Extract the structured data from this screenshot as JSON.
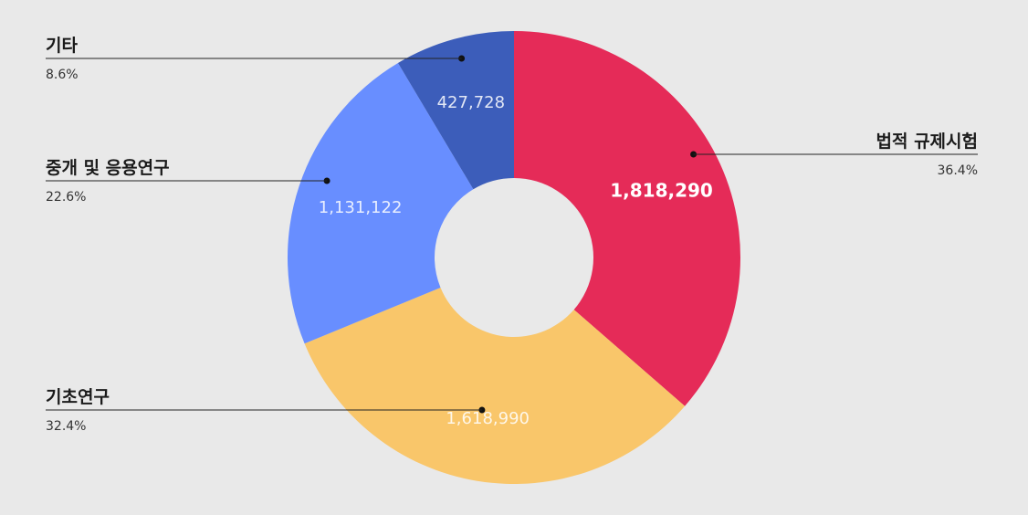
{
  "chart_data": {
    "type": "pie",
    "donut": true,
    "categories": [
      "법적 규제시험",
      "기초연구",
      "중개 및 응용연구",
      "기타"
    ],
    "values": [
      1818290,
      1618990,
      1131122,
      427728
    ],
    "value_labels": [
      "1,818,290",
      "1,618,990",
      "1,131,122",
      "427,728"
    ],
    "percent_labels": [
      "36.4%",
      "32.4%",
      "22.6%",
      "8.6%"
    ],
    "colors": [
      "#e52b58",
      "#f9c66a",
      "#688eff",
      "#3c5dba"
    ],
    "value_label_colors": [
      "#ffffff",
      "#ffffff",
      "#ffffff",
      "#ffffff"
    ],
    "legend": "callouts"
  }
}
